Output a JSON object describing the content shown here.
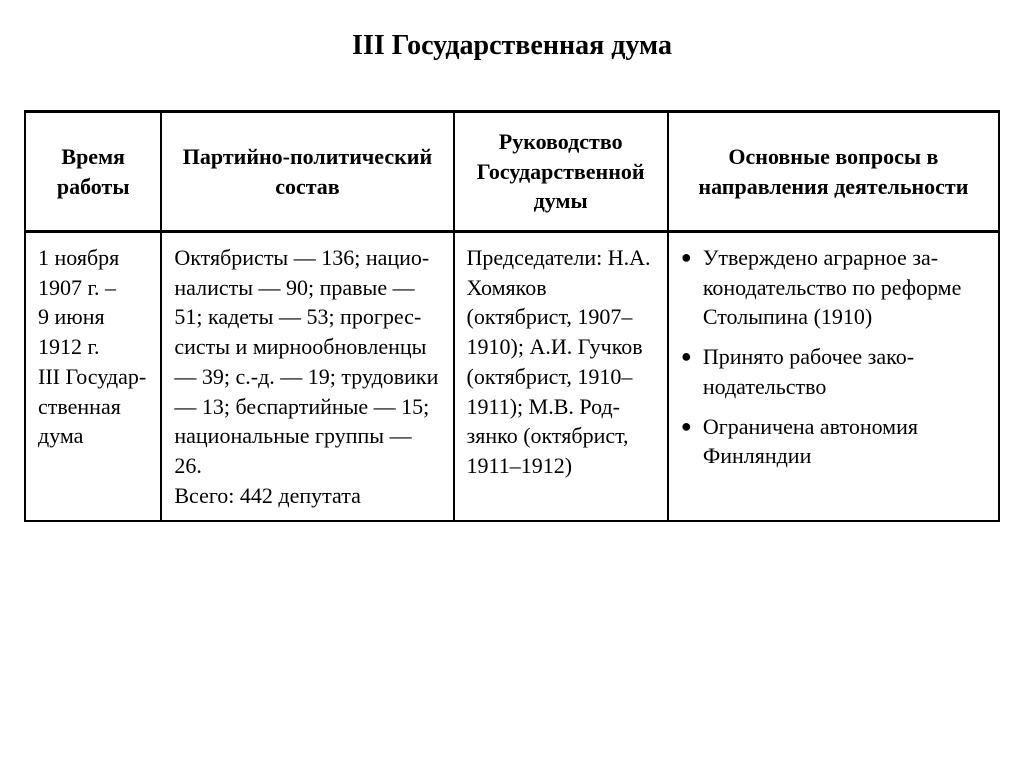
{
  "title": "III Государственная дума",
  "table": {
    "headers": {
      "col1": "Время работы",
      "col2": "Партийно-политический состав",
      "col3": "Руководство Государственной думы",
      "col4": "Основные вопросы в направления деятельности"
    },
    "row": {
      "time": "1 ноября 1907 г. –\n9 июня 1912 г.\nIII Государ­ственная дума",
      "composition": "Октябристы — 136; нацио­налисты — 90; правые — 51; кадеты — 53; прогрес­систы и мирнообновлен­цы — 39; с.-д. — 19; трудо­вики — 13; беспартий­ные — 15; национальные группы — 26.\nВсего: 442 депутата",
      "leadership": "Председатели: Н.А. Хомяков (октябрист, 1907–1910); А.И. Гучков (ок­тябрист, 1910–1911); М.В. Род­зянко (октябрист, 1911–1912)",
      "issues": [
        "Утверждено аграрное за­конодательство по ре­форме Столыпина (1910)",
        "Принято рабочее зако­нодательство",
        "Ограничена автономия Финляндии"
      ]
    }
  },
  "style": {
    "font_family": "Times New Roman",
    "title_fontsize": 28,
    "cell_fontsize": 22,
    "border_color": "#000000",
    "background_color": "#ffffff",
    "text_color": "#000000",
    "header_border_width": 3,
    "cell_border_width": 2,
    "col_widths_pct": [
      14,
      30,
      22,
      34
    ]
  }
}
